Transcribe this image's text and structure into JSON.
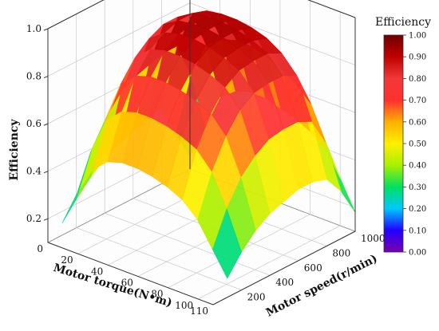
{
  "chart_data": {
    "type": "surface",
    "title": "",
    "zlabel": "Efficiency",
    "xlabel": "Motor torque(N•m)",
    "ylabel": "Motor speed(r/min)",
    "xlim": [
      0,
      110
    ],
    "ylim": [
      0,
      1000
    ],
    "zlim": [
      0.1,
      1.0
    ],
    "x_ticks": [
      "0",
      "20",
      "40",
      "60",
      "80",
      "100",
      "110"
    ],
    "y_ticks": [
      "200",
      "400",
      "600",
      "800",
      "1000"
    ],
    "z_ticks": [
      "0.2",
      "0.4",
      "0.6",
      "0.8",
      "1.0"
    ],
    "torque": [
      0,
      10,
      20,
      30,
      40,
      50,
      60,
      70,
      80,
      90,
      100,
      110
    ],
    "speed": [
      100,
      200,
      300,
      400,
      500,
      600,
      700,
      800,
      900,
      1000
    ],
    "efficiency": [
      [
        0.15,
        0.22,
        0.28,
        0.33,
        0.36,
        0.38,
        0.4,
        0.42,
        0.28,
        0.15
      ],
      [
        0.3,
        0.45,
        0.55,
        0.62,
        0.66,
        0.68,
        0.7,
        0.7,
        0.55,
        0.3
      ],
      [
        0.42,
        0.6,
        0.72,
        0.8,
        0.85,
        0.88,
        0.88,
        0.86,
        0.7,
        0.45
      ],
      [
        0.48,
        0.66,
        0.78,
        0.86,
        0.9,
        0.92,
        0.92,
        0.9,
        0.75,
        0.5
      ],
      [
        0.5,
        0.68,
        0.8,
        0.88,
        0.92,
        0.93,
        0.93,
        0.91,
        0.77,
        0.52
      ],
      [
        0.5,
        0.68,
        0.8,
        0.88,
        0.92,
        0.93,
        0.93,
        0.91,
        0.77,
        0.52
      ],
      [
        0.49,
        0.67,
        0.79,
        0.87,
        0.91,
        0.92,
        0.92,
        0.9,
        0.75,
        0.5
      ],
      [
        0.47,
        0.65,
        0.77,
        0.85,
        0.89,
        0.9,
        0.9,
        0.88,
        0.72,
        0.48
      ],
      [
        0.44,
        0.62,
        0.74,
        0.82,
        0.86,
        0.87,
        0.87,
        0.84,
        0.68,
        0.45
      ],
      [
        0.38,
        0.55,
        0.67,
        0.75,
        0.79,
        0.8,
        0.8,
        0.77,
        0.62,
        0.4
      ],
      [
        0.28,
        0.42,
        0.52,
        0.58,
        0.62,
        0.63,
        0.63,
        0.6,
        0.48,
        0.3
      ],
      [
        0.18,
        0.26,
        0.32,
        0.36,
        0.38,
        0.4,
        0.4,
        0.38,
        0.3,
        0.18
      ]
    ],
    "colorbar": {
      "title": "Efficiency",
      "range": [
        0,
        1
      ],
      "ticks": [
        "0.00",
        "0.10",
        "0.20",
        "0.30",
        "0.40",
        "0.50",
        "0.60",
        "0.70",
        "0.80",
        "0.90",
        "1.00"
      ],
      "colors": [
        "#7a00a8",
        "#2200ff",
        "#00c8ff",
        "#00e060",
        "#a8f000",
        "#fff000",
        "#ffb000",
        "#ff3030",
        "#f03838",
        "#c00000",
        "#700000"
      ]
    },
    "grid": true
  }
}
